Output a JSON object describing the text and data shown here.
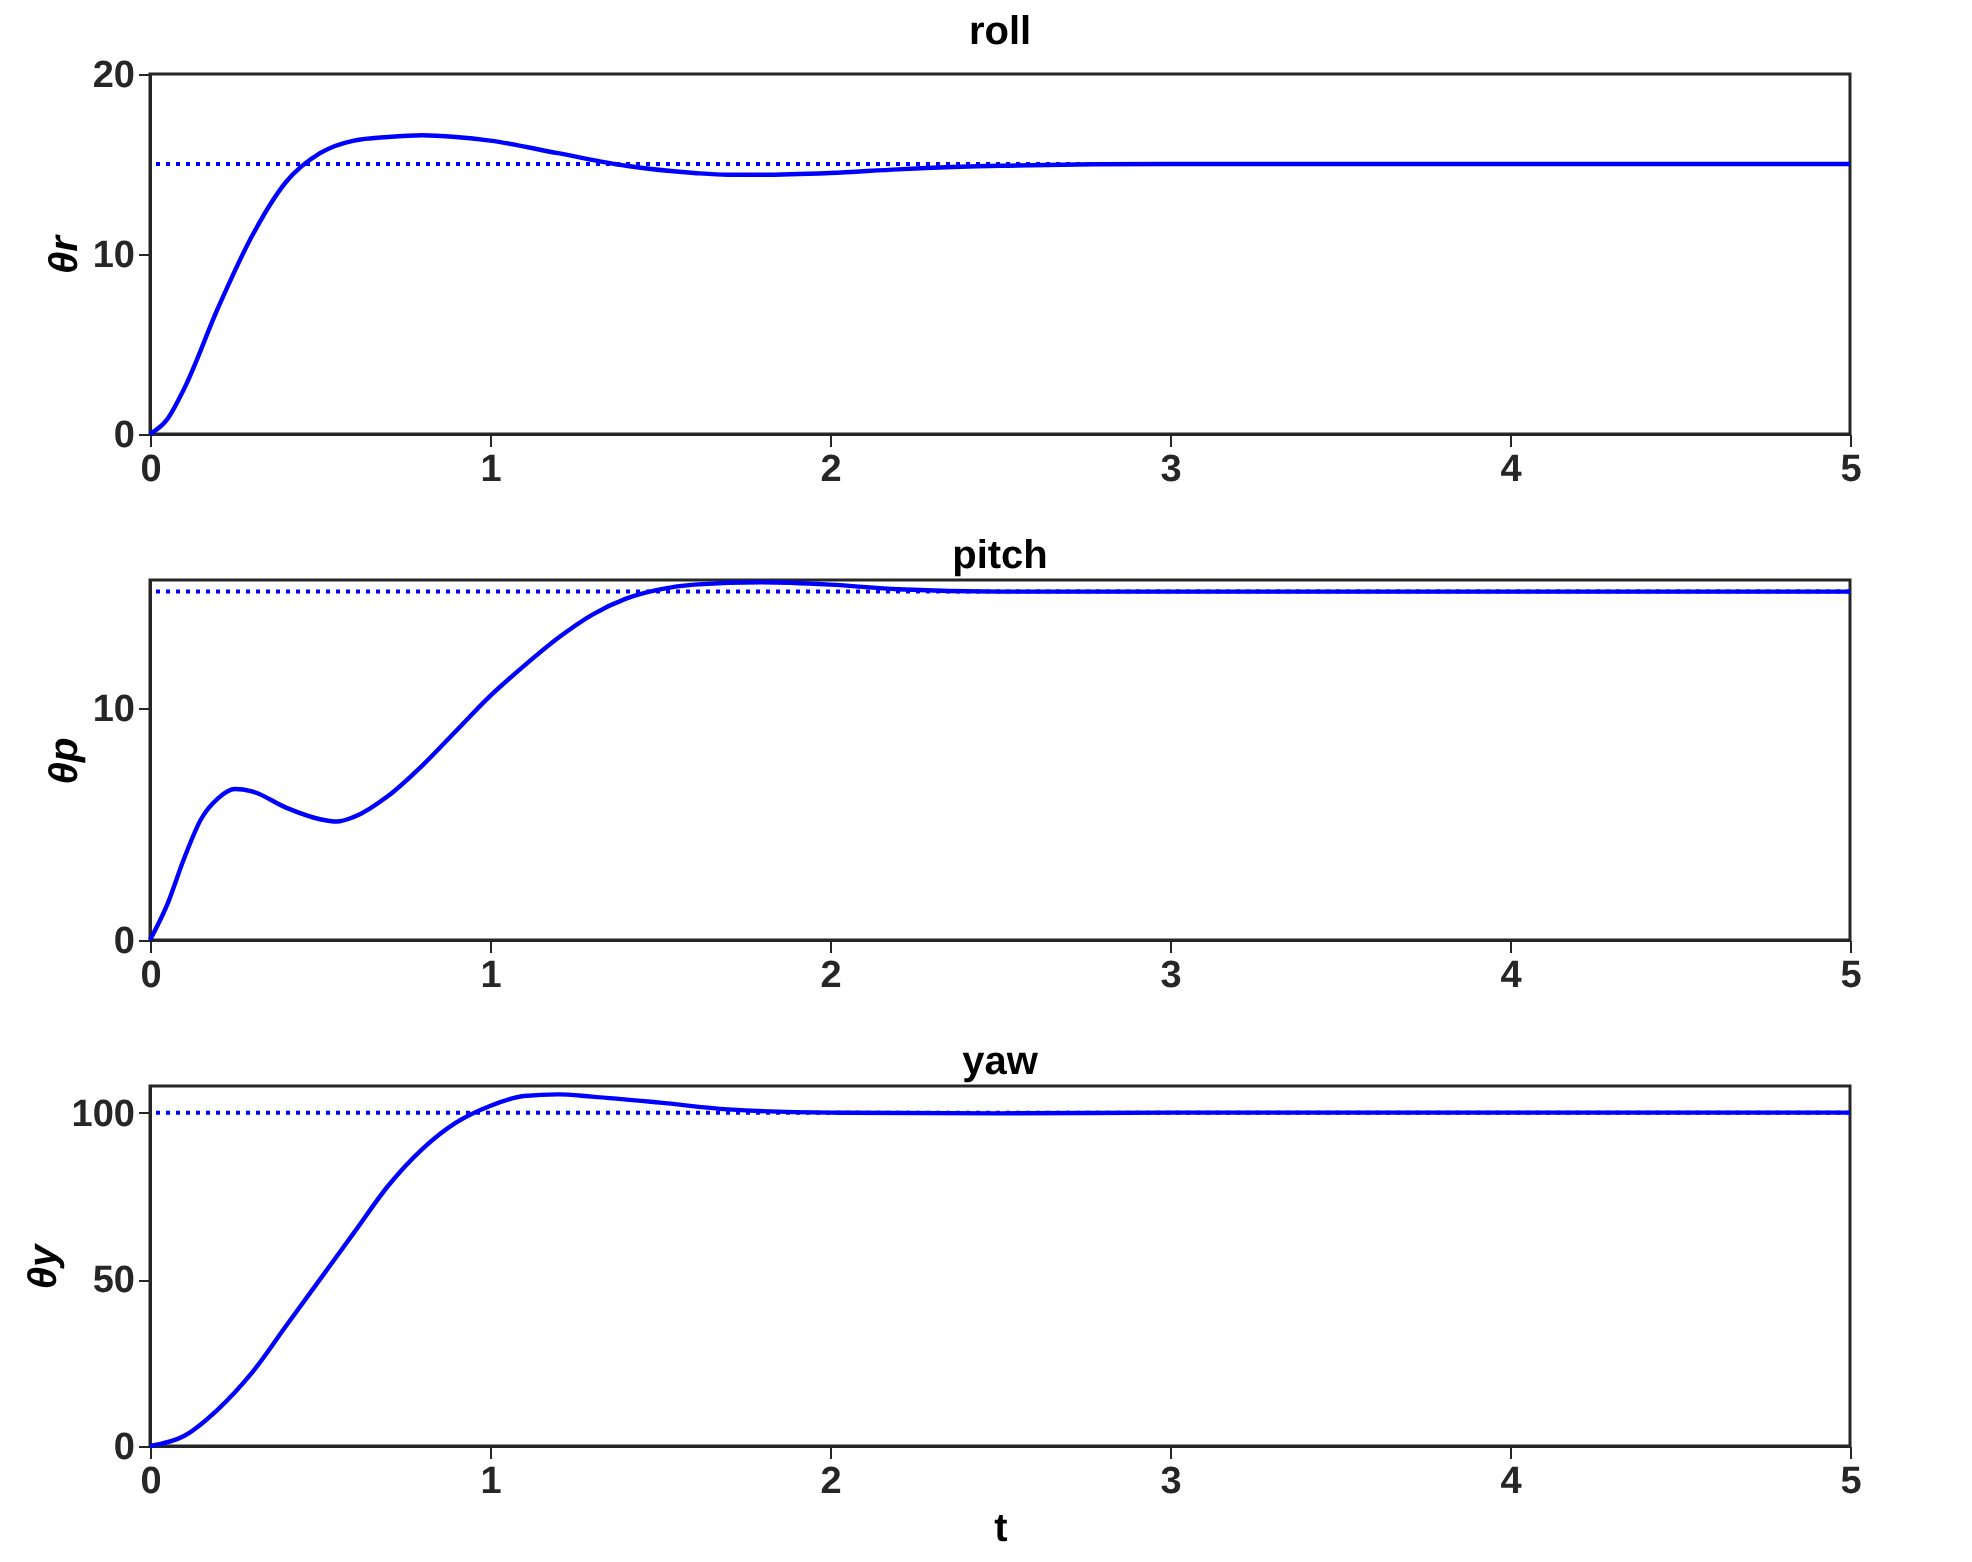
{
  "chart_data": [
    {
      "type": "line",
      "title": "roll",
      "ylabel": "θr",
      "xlim": [
        0,
        5
      ],
      "xticks": [
        0,
        1,
        2,
        3,
        4,
        5
      ],
      "ylim": [
        0,
        20
      ],
      "yticks": [
        0,
        10,
        20
      ],
      "grid": false,
      "x": [
        0,
        0.05,
        0.1,
        0.2,
        0.3,
        0.4,
        0.5,
        0.6,
        0.7,
        0.8,
        0.9,
        1.0,
        1.2,
        1.4,
        1.6,
        1.7,
        1.8,
        2.0,
        2.2,
        2.5,
        3,
        4,
        5
      ],
      "series": [
        {
          "color": "#0000ff",
          "values": [
            0,
            0.8,
            2.5,
            7,
            11,
            14,
            15.6,
            16.3,
            16.5,
            16.6,
            16.5,
            16.3,
            15.6,
            14.9,
            14.5,
            14.4,
            14.4,
            14.5,
            14.7,
            14.9,
            15.0,
            15.0,
            15.0
          ]
        }
      ],
      "ref_lines": [
        {
          "axis": "y",
          "value": 15,
          "label": null,
          "color": "#0000ff",
          "line_style": "dotted"
        }
      ]
    },
    {
      "type": "line",
      "title": "pitch",
      "ylabel": "θp",
      "xlim": [
        0,
        5
      ],
      "xticks": [
        0,
        1,
        2,
        3,
        4,
        5
      ],
      "ylim": [
        0,
        15.5
      ],
      "yticks": [
        0,
        10
      ],
      "grid": false,
      "x": [
        0,
        0.05,
        0.1,
        0.15,
        0.2,
        0.25,
        0.3,
        0.4,
        0.5,
        0.55,
        0.6,
        0.7,
        0.8,
        0.9,
        1.0,
        1.1,
        1.2,
        1.3,
        1.4,
        1.5,
        1.6,
        1.8,
        2.0,
        2.2,
        2.5,
        3,
        4,
        5
      ],
      "series": [
        {
          "color": "#0000ff",
          "values": [
            0,
            1.5,
            3.5,
            5.2,
            6.1,
            6.5,
            6.4,
            5.7,
            5.2,
            5.1,
            5.3,
            6.2,
            7.5,
            9,
            10.5,
            11.8,
            13,
            14,
            14.7,
            15.1,
            15.3,
            15.4,
            15.3,
            15.1,
            15.0,
            15.0,
            15.0,
            15.0
          ]
        }
      ],
      "ref_lines": [
        {
          "axis": "y",
          "value": 15,
          "label": null,
          "color": "#0000ff",
          "line_style": "dotted"
        }
      ]
    },
    {
      "type": "line",
      "title": "yaw",
      "xlabel": "t",
      "ylabel": "θy",
      "xlim": [
        0,
        5
      ],
      "xticks": [
        0,
        1,
        2,
        3,
        4,
        5
      ],
      "ylim": [
        0,
        108
      ],
      "yticks": [
        0,
        50,
        100
      ],
      "grid": false,
      "x": [
        0,
        0.1,
        0.2,
        0.3,
        0.4,
        0.5,
        0.6,
        0.7,
        0.8,
        0.9,
        1.0,
        1.1,
        1.2,
        1.3,
        1.5,
        1.7,
        2.0,
        2.5,
        3,
        4,
        5
      ],
      "series": [
        {
          "color": "#0000ff",
          "values": [
            0,
            3,
            11,
            22,
            36,
            50,
            64,
            78,
            89,
            97,
            102,
            105,
            105.5,
            104.8,
            103,
            101,
            100,
            99.8,
            100,
            100,
            100
          ]
        }
      ],
      "ref_lines": [
        {
          "axis": "y",
          "value": 100,
          "label": null,
          "color": "#0000ff",
          "line_style": "dotted"
        }
      ]
    }
  ]
}
